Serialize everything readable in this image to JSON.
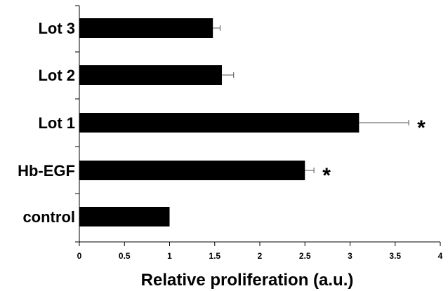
{
  "chart_data": {
    "type": "bar",
    "orientation": "horizontal",
    "categories": [
      "control",
      "Hb-EGF",
      "Lot 1",
      "Lot 2",
      "Lot 3"
    ],
    "values": [
      1.0,
      2.5,
      3.1,
      1.58,
      1.48
    ],
    "error_plus": [
      0.0,
      0.1,
      0.55,
      0.13,
      0.08
    ],
    "annotations": [
      "",
      "*",
      "*",
      "",
      ""
    ],
    "xlabel": "Relative proliferation (a.u.)",
    "xlim": [
      0,
      4
    ],
    "xticks": [
      0,
      0.5,
      1,
      1.5,
      2,
      2.5,
      3,
      3.5,
      4
    ],
    "xtick_labels": [
      "0",
      "0.5",
      "1",
      "1.5",
      "2",
      "2.5",
      "3",
      "3.5",
      "4"
    ],
    "grid": false,
    "legend": "none",
    "bar_color": "#000000",
    "error_color": "#555555"
  }
}
